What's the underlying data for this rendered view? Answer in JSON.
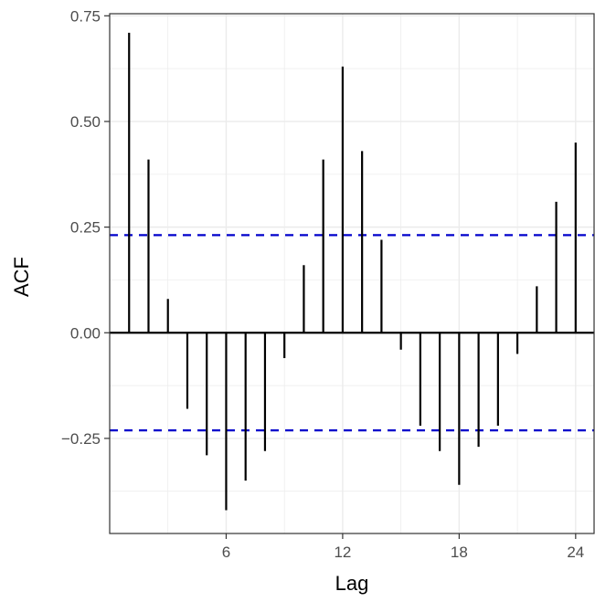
{
  "chart_data": {
    "type": "bar",
    "style": "acf-stem",
    "xlabel": "Lag",
    "ylabel": "ACF",
    "x": [
      1,
      2,
      3,
      4,
      5,
      6,
      7,
      8,
      9,
      10,
      11,
      12,
      13,
      14,
      15,
      16,
      17,
      18,
      19,
      20,
      21,
      22,
      23,
      24
    ],
    "values": [
      0.71,
      0.41,
      0.08,
      -0.18,
      -0.29,
      -0.42,
      -0.35,
      -0.28,
      -0.06,
      0.16,
      0.41,
      0.63,
      0.43,
      0.22,
      -0.04,
      -0.22,
      -0.28,
      -0.36,
      -0.27,
      -0.22,
      -0.05,
      0.11,
      0.31,
      0.45
    ],
    "xticks": [
      6,
      12,
      18,
      24
    ],
    "yticks": [
      -0.25,
      0.0,
      0.25,
      0.5,
      0.75
    ],
    "ytick_labels": [
      "−0.25",
      "0.00",
      "0.25",
      "0.50",
      "0.75"
    ],
    "xlim": [
      0,
      24.95
    ],
    "ylim": [
      -0.475,
      0.755
    ],
    "confidence_limit": 0.231,
    "confidence_color": "#0000cc",
    "bar_color": "#000000",
    "grid": true,
    "grid_color": "#ebebeb",
    "legend": "none"
  }
}
